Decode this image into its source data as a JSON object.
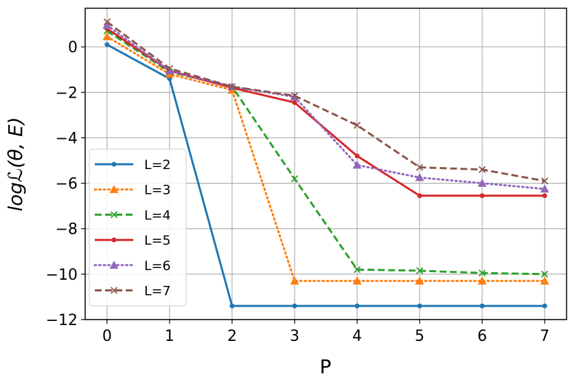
{
  "chart_data": {
    "type": "line",
    "xlabel": "P",
    "ylabel": "logℒ(θ, E)",
    "x": [
      0,
      1,
      2,
      3,
      4,
      5,
      6,
      7
    ],
    "xlim": [
      -0.35,
      7.35
    ],
    "ylim": [
      -12,
      1.7
    ],
    "xticks": [
      "0",
      "1",
      "2",
      "3",
      "4",
      "5",
      "6",
      "7"
    ],
    "yticks": [
      0,
      -2,
      -4,
      -6,
      -8,
      -10,
      -12
    ],
    "ytick_labels": [
      "0",
      "−2",
      "−4",
      "−6",
      "−8",
      "−10",
      "−12"
    ],
    "grid": true,
    "legend_position": "center-left",
    "series": [
      {
        "name": "L=2",
        "color": "#1f77b4",
        "line_style": "solid",
        "marker": "circle",
        "values": [
          0.1,
          -1.4,
          -11.4,
          -11.4,
          -11.4,
          -11.4,
          -11.4,
          -11.4
        ]
      },
      {
        "name": "L=3",
        "color": "#ff7f0e",
        "line_style": "dotted",
        "marker": "triangle",
        "values": [
          0.45,
          -1.2,
          -1.9,
          -10.3,
          -10.3,
          -10.3,
          -10.3,
          -10.3
        ]
      },
      {
        "name": "L=4",
        "color": "#2ca02c",
        "line_style": "dashed",
        "marker": "x",
        "values": [
          0.7,
          -1.1,
          -1.75,
          -5.8,
          -9.8,
          -9.85,
          -9.95,
          -10.0
        ]
      },
      {
        "name": "L=5",
        "color": "#d62728",
        "line_style": "solid",
        "marker": "circle",
        "values": [
          0.8,
          -1.05,
          -1.8,
          -2.45,
          -4.8,
          -6.55,
          -6.55,
          -6.55
        ]
      },
      {
        "name": "L=6",
        "color": "#9467bd",
        "line_style": "dotted",
        "marker": "triangle",
        "values": [
          0.95,
          -1.05,
          -1.75,
          -2.2,
          -5.2,
          -5.75,
          -6.0,
          -6.25
        ]
      },
      {
        "name": "L=7",
        "color": "#8c564b",
        "line_style": "dashed",
        "marker": "x",
        "values": [
          1.1,
          -0.95,
          -1.75,
          -2.15,
          -3.45,
          -5.3,
          -5.4,
          -5.9
        ]
      }
    ]
  }
}
